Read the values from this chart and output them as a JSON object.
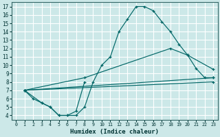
{
  "xlabel": "Humidex (Indice chaleur)",
  "bg_color": "#cce8e8",
  "line_color": "#006666",
  "grid_color": "#ffffff",
  "xlim": [
    -0.5,
    23.5
  ],
  "ylim": [
    3.5,
    17.5
  ],
  "xticks": [
    0,
    1,
    2,
    3,
    4,
    5,
    6,
    7,
    8,
    9,
    10,
    11,
    12,
    13,
    14,
    15,
    16,
    17,
    18,
    19,
    20,
    21,
    22,
    23
  ],
  "yticks": [
    4,
    5,
    6,
    7,
    8,
    9,
    10,
    11,
    12,
    13,
    14,
    15,
    16,
    17
  ],
  "curves": [
    {
      "x": [
        1,
        2,
        3,
        4,
        5,
        6,
        7,
        8,
        9,
        10,
        11,
        12,
        13,
        14,
        15,
        16,
        17,
        18,
        19,
        20,
        21,
        22,
        23
      ],
      "y": [
        7,
        6,
        5.5,
        5,
        4,
        4,
        4,
        5,
        8,
        10,
        11,
        14,
        15.5,
        17,
        17,
        16.5,
        15.2,
        14,
        12.5,
        11.2,
        9.6,
        8.5,
        8.5
      ]
    },
    {
      "x": [
        1,
        3,
        4,
        5,
        6,
        7,
        8
      ],
      "y": [
        7,
        5.5,
        5,
        4,
        4,
        4.5,
        8
      ]
    },
    {
      "x": [
        1,
        8,
        18,
        20,
        23
      ],
      "y": [
        7,
        8.5,
        12,
        11.2,
        9.5
      ]
    },
    {
      "x": [
        1,
        23
      ],
      "y": [
        7,
        8.5
      ]
    },
    {
      "x": [
        1,
        23
      ],
      "y": [
        7,
        8
      ]
    }
  ]
}
